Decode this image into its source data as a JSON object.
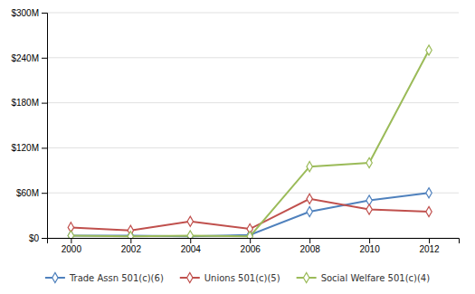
{
  "chart_data": {
    "type": "line",
    "x": [
      2000,
      2002,
      2004,
      2006,
      2008,
      2010,
      2012
    ],
    "series": [
      {
        "name": "Trade Assn 501(c)(6)",
        "color": "#4f81bd",
        "values": [
          3,
          3,
          2,
          4,
          35,
          50,
          60
        ]
      },
      {
        "name": "Unions 501(c)(5)",
        "color": "#c0504d",
        "values": [
          14,
          10,
          22,
          12,
          52,
          38,
          35
        ]
      },
      {
        "name": "Social Welfare 501(c)(4)",
        "color": "#9bbb59",
        "values": [
          3,
          2,
          3,
          2,
          95,
          100,
          250
        ]
      }
    ],
    "xlim": [
      1999.2,
      2013.0
    ],
    "xticks": [
      2000,
      2002,
      2004,
      2006,
      2008,
      2010,
      2012
    ],
    "ylim": [
      0,
      300
    ],
    "yticks": [
      {
        "value": 0,
        "label": "$0"
      },
      {
        "value": 60,
        "label": "$60M"
      },
      {
        "value": 120,
        "label": "$120M"
      },
      {
        "value": 180,
        "label": "$180M"
      },
      {
        "value": 240,
        "label": "$240M"
      },
      {
        "value": 300,
        "label": "$300M"
      }
    ],
    "grid": true,
    "legend": "bottom",
    "marker": "diamond"
  }
}
